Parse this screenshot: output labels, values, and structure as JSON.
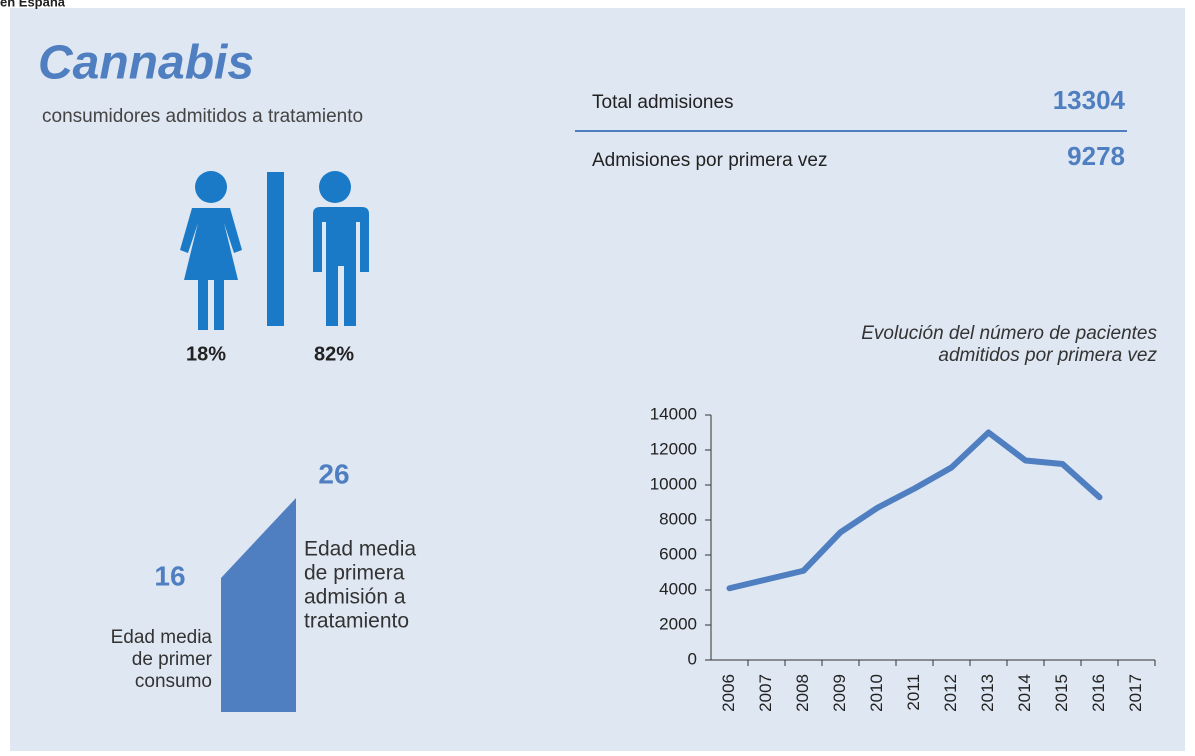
{
  "header": {
    "region": "en España",
    "title": "Cannabis",
    "subtitle": "consumidores admitidos a tratamiento"
  },
  "stats": [
    {
      "label": "Total admisiones",
      "value": "13304"
    },
    {
      "label": "Admisiones por primera vez",
      "value": "9278"
    }
  ],
  "gender": {
    "female": "18%",
    "male": "82%"
  },
  "ages": [
    {
      "value": "16",
      "label": [
        "Edad media",
        "de primer",
        "consumo"
      ]
    },
    {
      "value": "26",
      "label": [
        "Edad media",
        "de primera",
        "admisión a",
        "tratamiento"
      ]
    }
  ],
  "chart_data": {
    "type": "line",
    "title": [
      "Evolución del número de pacientes",
      "admitidos por primera vez"
    ],
    "categories": [
      "2006",
      "2007",
      "2008",
      "2009",
      "2010",
      "2011",
      "2012",
      "2013",
      "2014",
      "2015",
      "2016",
      "2017"
    ],
    "series": [
      {
        "color": "#4f7fc0",
        "values": [
          4100,
          4600,
          5100,
          7300,
          8700,
          9800,
          11000,
          13000,
          11400,
          11200,
          9300,
          null
        ]
      }
    ],
    "ylim": [
      0,
      14000
    ],
    "yticks": [
      0,
      2000,
      4000,
      6000,
      8000,
      10000,
      12000,
      14000
    ]
  }
}
